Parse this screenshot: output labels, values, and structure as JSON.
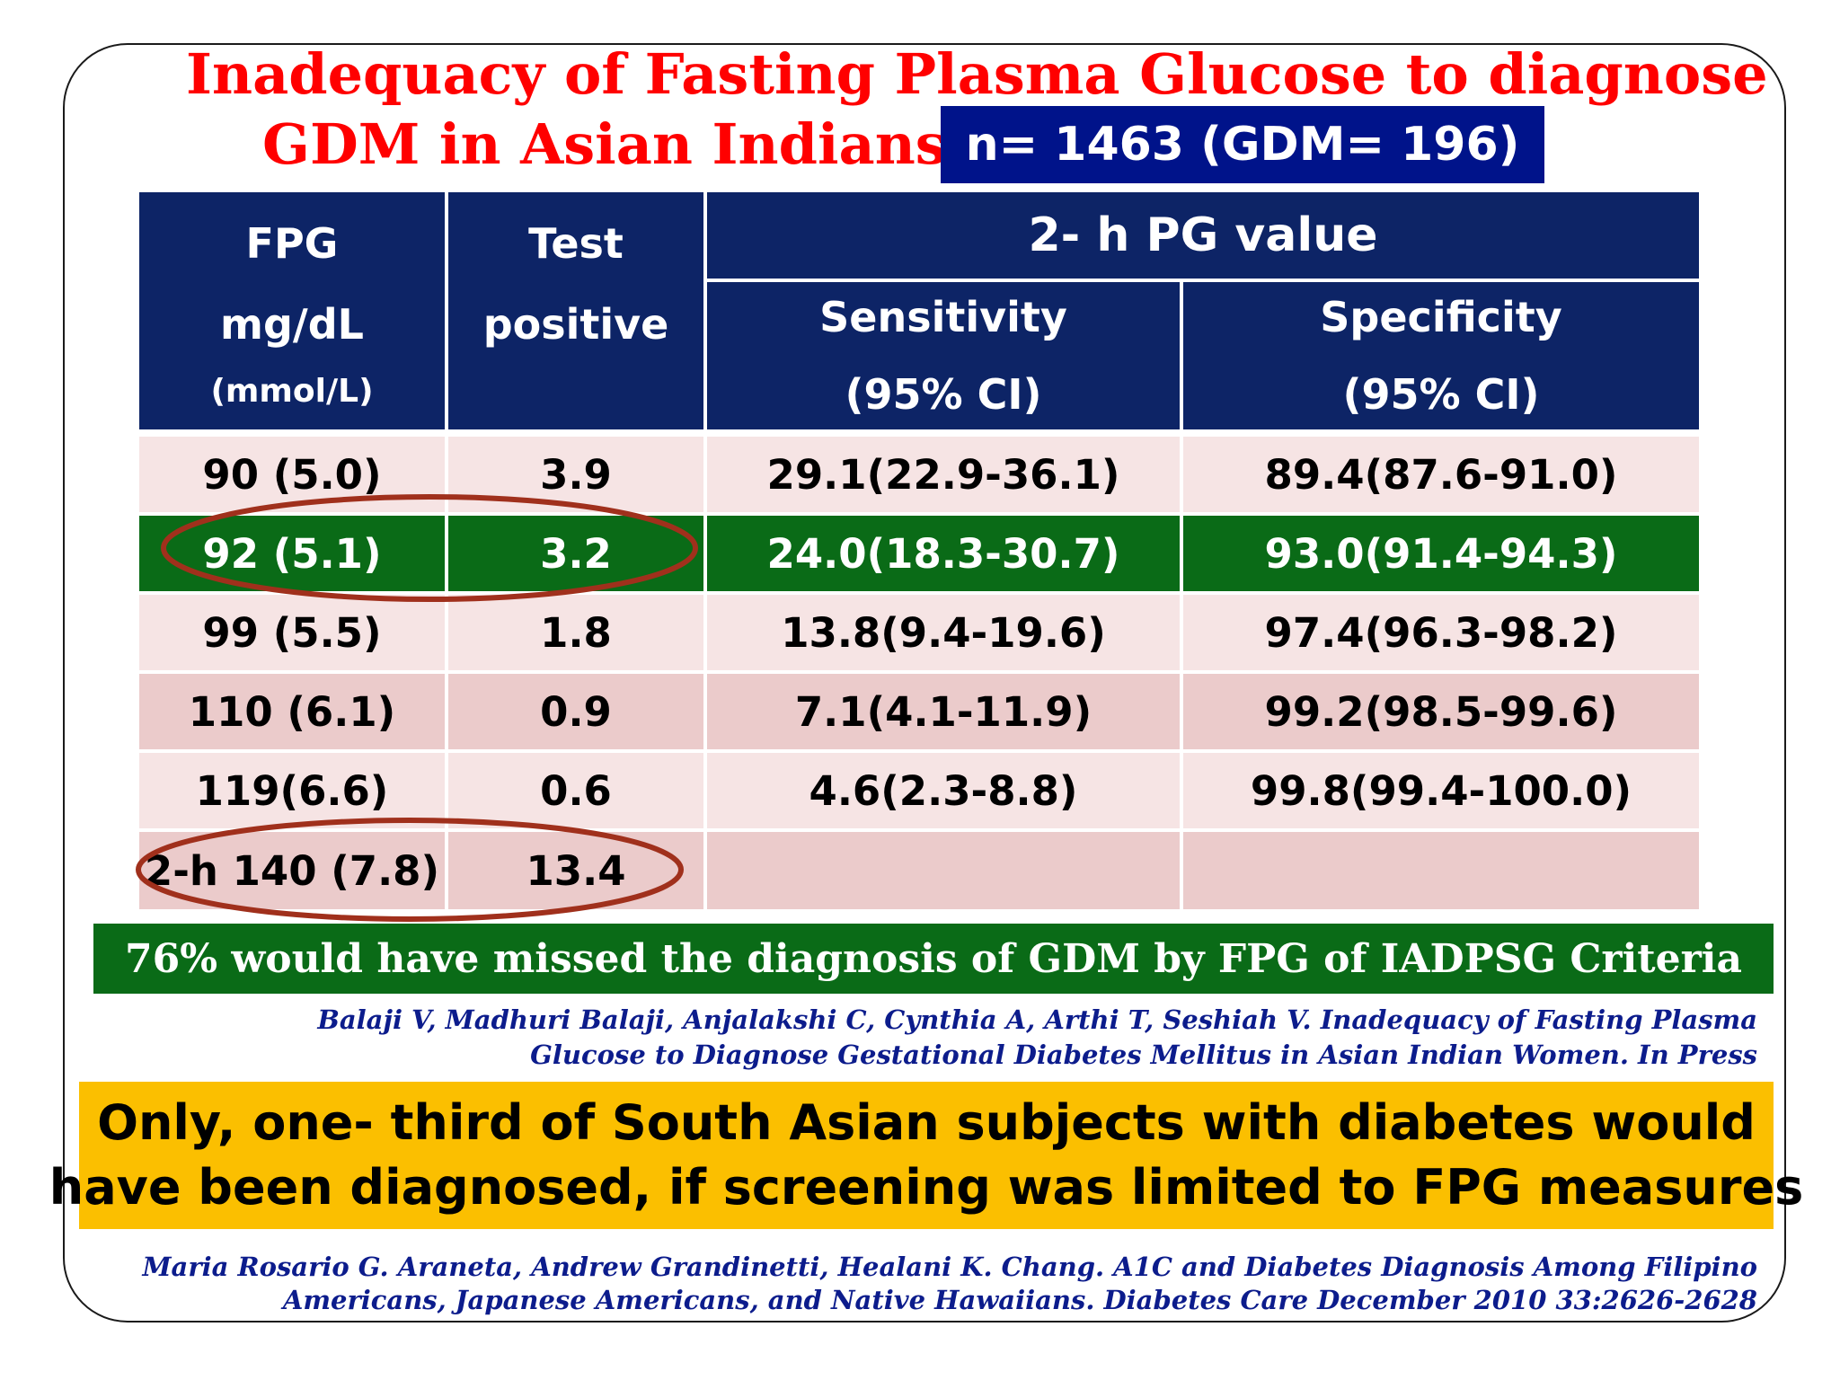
{
  "title": {
    "line1": "Inadequacy of Fasting Plasma Glucose to diagnose",
    "line2": "GDM in Asian Indians",
    "n_box": "n= 1463 (GDM= 196)"
  },
  "table": {
    "headers": {
      "fpg": {
        "line1": "FPG",
        "line2": "mg/dL",
        "line3": "(mmol/L)"
      },
      "test": {
        "line1": "Test",
        "line2": "positive"
      },
      "group": "2- h PG value",
      "sensitivity": {
        "line1": "Sensitivity",
        "line2": "(95% CI)"
      },
      "specificity": {
        "line1": "Specificity",
        "line2": "(95% CI)"
      }
    },
    "rows": [
      {
        "fpg": "90 (5.0)",
        "test": "3.9",
        "sens": "29.1(22.9-36.1)",
        "spec": "89.4(87.6-91.0)"
      },
      {
        "fpg": "92 (5.1)",
        "test": "3.2",
        "sens": "24.0(18.3-30.7)",
        "spec": "93.0(91.4-94.3)"
      },
      {
        "fpg": "99 (5.5)",
        "test": "1.8",
        "sens": "13.8(9.4-19.6)",
        "spec": "97.4(96.3-98.2)"
      },
      {
        "fpg": "110 (6.1)",
        "test": "0.9",
        "sens": "7.1(4.1-11.9)",
        "spec": "99.2(98.5-99.6)"
      },
      {
        "fpg": "119(6.6)",
        "test": "0.6",
        "sens": "4.6(2.3-8.8)",
        "spec": "99.8(99.4-100.0)"
      },
      {
        "fpg": "2-h 140 (7.8)",
        "test": "13.4",
        "sens": "",
        "spec": ""
      }
    ]
  },
  "banner": "76% would have missed the diagnosis of GDM  by FPG of IADPSG Criteria",
  "reference1": {
    "line1": "Balaji V, Madhuri Balaji, Anjalakshi C, Cynthia A, Arthi T, Seshiah V. Inadequacy of Fasting Plasma",
    "line2": "Glucose to Diagnose Gestational Diabetes Mellitus in Asian Indian Women. In Press"
  },
  "conclusion": {
    "line1": "Only, one- third of South Asian subjects with diabetes would",
    "line2": "have been diagnosed, if screening was limited to FPG measures"
  },
  "reference2": {
    "line1": "Maria Rosario G. Araneta, Andrew Grandinetti, Healani K. Chang. A1C and Diabetes Diagnosis Among Filipino",
    "line2": "Americans, Japanese Americans, and Native Hawaiians. Diabetes Care December 2010 33:2626-2628"
  },
  "colors": {
    "title": "#ff0000",
    "header_bg": "#0d2466",
    "highlight_row": "#0a6b17",
    "conclusion_bg": "#fbbf00",
    "ellipse": "#a0301c"
  }
}
